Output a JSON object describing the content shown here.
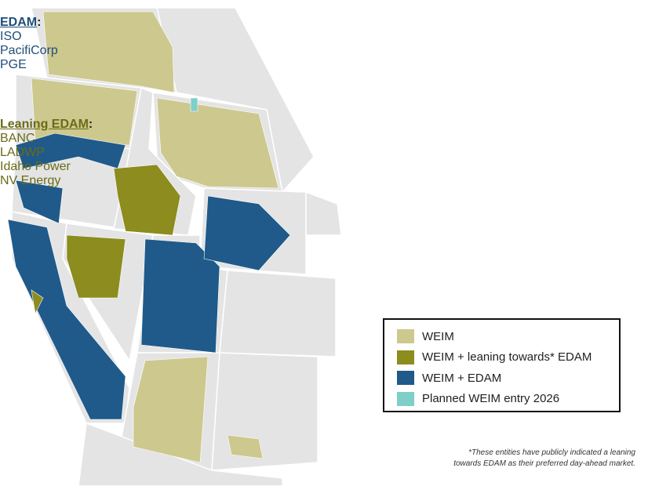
{
  "sidebar": {
    "groups": [
      {
        "heading": "EDAM",
        "separator": ":",
        "color": "#1f4e79",
        "members": [
          "ISO",
          "PacifiCorp",
          "PGE"
        ]
      },
      {
        "heading": "Leaning EDAM",
        "separator": ":",
        "color": "#6b6b18",
        "members": [
          "BANC",
          "LADWP",
          "Idaho Power",
          "NV Energy"
        ]
      }
    ]
  },
  "legend": {
    "items": [
      {
        "label": "WEIM",
        "color": "#cdc88d"
      },
      {
        "label": "WEIM + leaning towards* EDAM",
        "color": "#8c8c1f"
      },
      {
        "label": "WEIM + EDAM",
        "color": "#1f5a8a"
      },
      {
        "label": "Planned WEIM entry 2026",
        "color": "#7fcfc9"
      }
    ]
  },
  "footnote": {
    "lines": [
      "*These entities have publicly indicated a leaning",
      "towards EDAM as their preferred day-ahead market."
    ]
  }
}
